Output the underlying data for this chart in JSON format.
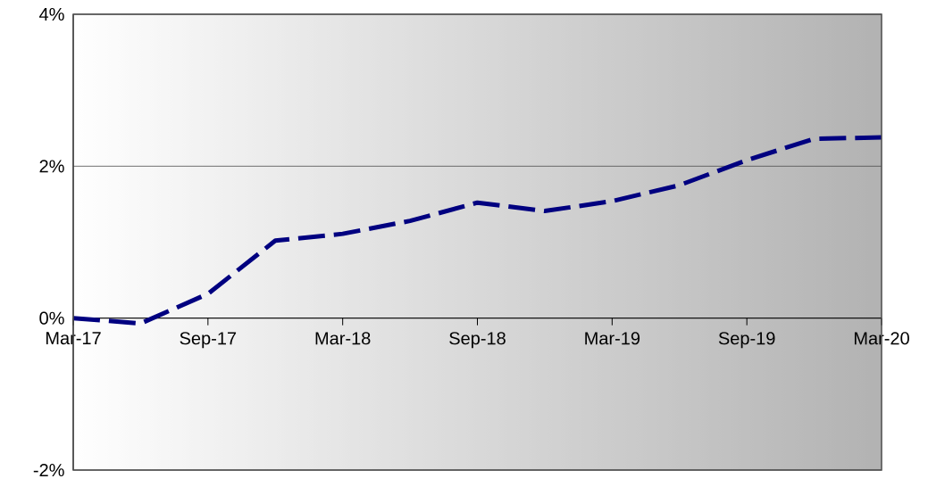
{
  "chart_data": {
    "type": "line",
    "x": [
      "2017-03",
      "2017-06",
      "2017-09",
      "2017-12",
      "2018-03",
      "2018-06",
      "2018-09",
      "2018-12",
      "2019-03",
      "2019-06",
      "2019-09",
      "2019-12",
      "2020-03"
    ],
    "series": [
      {
        "color": "#000080",
        "values": [
          0.0,
          -0.07,
          0.32,
          1.02,
          1.11,
          1.28,
          1.52,
          1.41,
          1.54,
          1.75,
          2.08,
          2.36,
          2.38
        ]
      }
    ],
    "xlim": [
      "2017-03",
      "2020-03"
    ],
    "xticks": [
      {
        "value": "2017-03",
        "label": "Mar-17"
      },
      {
        "value": "2017-09",
        "label": "Sep-17"
      },
      {
        "value": "2018-03",
        "label": "Mar-18"
      },
      {
        "value": "2018-09",
        "label": "Sep-18"
      },
      {
        "value": "2019-03",
        "label": "Mar-19"
      },
      {
        "value": "2019-09",
        "label": "Sep-19"
      },
      {
        "value": "2020-03",
        "label": "Mar-20"
      }
    ],
    "ylim": [
      -2,
      4
    ],
    "yticks": [
      {
        "value": -2,
        "label": "-2%"
      },
      {
        "value": 0,
        "label": "0%"
      },
      {
        "value": 2,
        "label": "2%"
      },
      {
        "value": 4,
        "label": "4%"
      }
    ],
    "grid": "y",
    "line_style": "dashed",
    "marker": "none"
  }
}
